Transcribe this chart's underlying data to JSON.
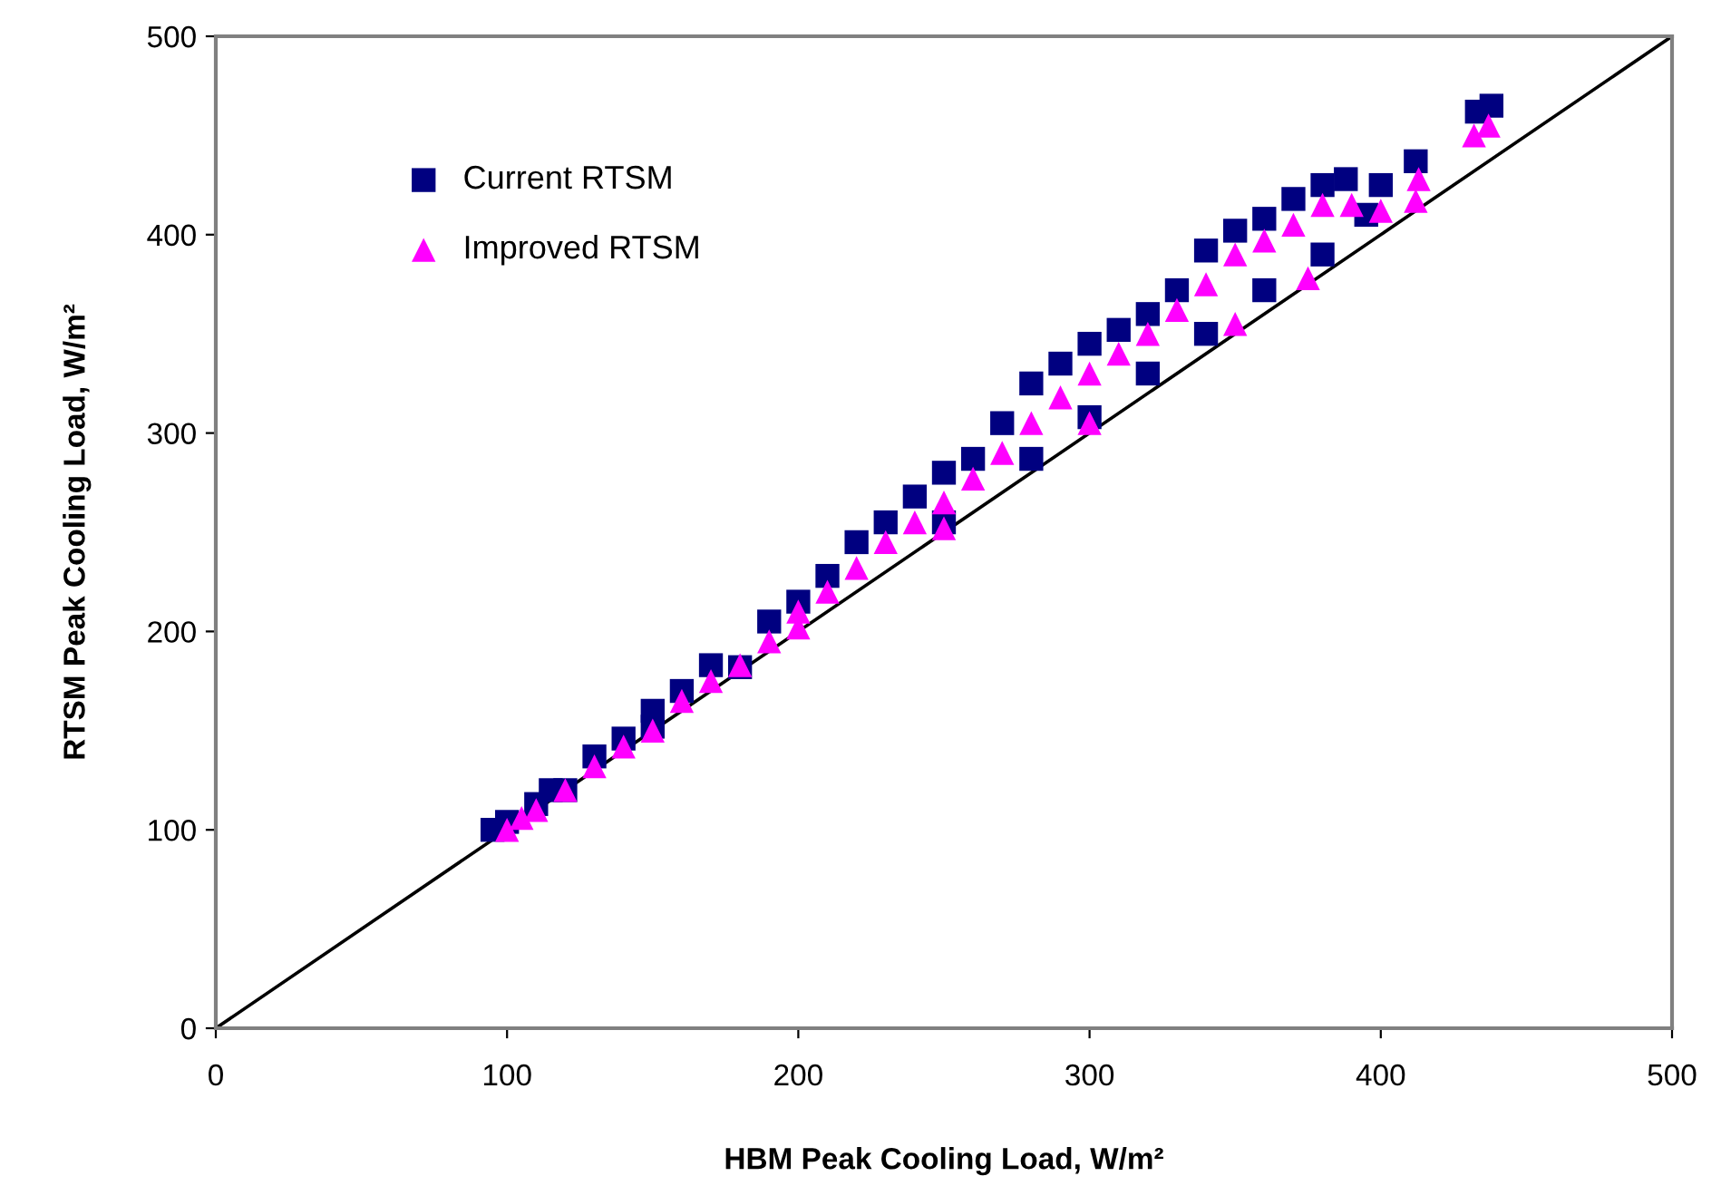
{
  "chart_data": {
    "type": "scatter",
    "xlabel": "HBM Peak Cooling Load, W/m²",
    "ylabel": "RTSM Peak Cooling Load, W/m²",
    "xlim": [
      0,
      500
    ],
    "ylim": [
      0,
      500
    ],
    "xticks": [
      0,
      100,
      200,
      300,
      400,
      500
    ],
    "yticks": [
      0,
      100,
      200,
      300,
      400,
      500
    ],
    "grid": false,
    "legend": "top left",
    "series": [
      {
        "name": "Current RTSM",
        "color": "#000080",
        "marker": "square",
        "x": [
          95,
          100,
          110,
          115,
          130,
          140,
          150,
          160,
          170,
          190,
          200,
          210,
          220,
          230,
          240,
          250,
          260,
          270,
          280,
          290,
          300,
          310,
          320,
          330,
          340,
          350,
          360,
          370,
          380,
          388,
          400,
          412,
          433,
          438,
          120,
          150,
          180,
          250,
          280,
          300,
          320,
          340,
          360,
          380,
          395
        ],
        "values": [
          100,
          104,
          113,
          120,
          137,
          146,
          160,
          170,
          183,
          205,
          215,
          228,
          245,
          255,
          268,
          280,
          287,
          305,
          325,
          335,
          345,
          352,
          360,
          372,
          392,
          402,
          408,
          418,
          425,
          428,
          425,
          437,
          462,
          465,
          120,
          152,
          182,
          255,
          287,
          308,
          330,
          350,
          372,
          390,
          410
        ]
      },
      {
        "name": "Improved RTSM",
        "color": "#ff00ff",
        "marker": "triangle",
        "x": [
          100,
          105,
          110,
          120,
          130,
          140,
          160,
          170,
          180,
          190,
          200,
          210,
          220,
          230,
          240,
          250,
          260,
          270,
          280,
          290,
          300,
          310,
          320,
          330,
          340,
          350,
          360,
          370,
          380,
          390,
          400,
          412,
          413,
          432,
          437,
          150,
          200,
          250,
          300,
          350,
          375
        ],
        "values": [
          100,
          106,
          110,
          120,
          132,
          142,
          165,
          175,
          183,
          195,
          210,
          220,
          232,
          245,
          255,
          265,
          277,
          290,
          305,
          318,
          330,
          340,
          350,
          362,
          375,
          390,
          397,
          405,
          415,
          415,
          412,
          417,
          428,
          450,
          455,
          150,
          202,
          252,
          305,
          355,
          378
        ]
      },
      {
        "type": "line",
        "color": "#000000",
        "line_style": "solid",
        "x": [
          0,
          500
        ],
        "values": [
          0,
          500
        ]
      }
    ]
  }
}
